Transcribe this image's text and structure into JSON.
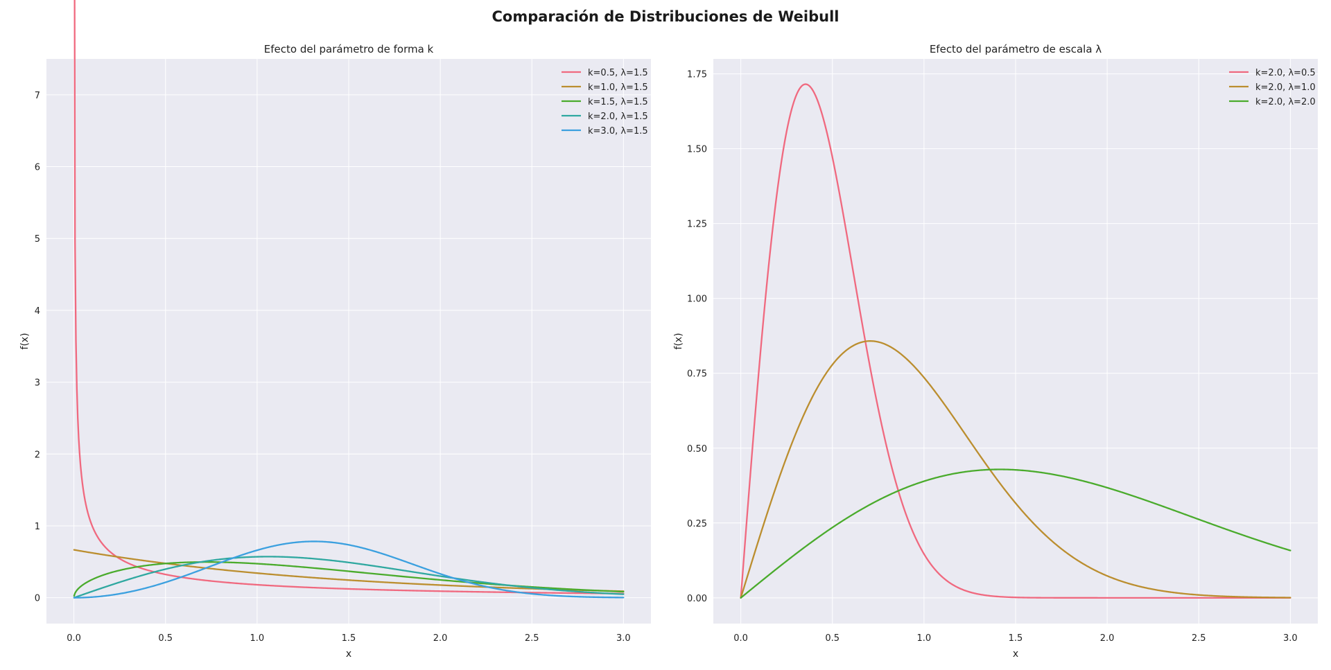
{
  "suptitle": "Comparación de Distribuciones de Weibull",
  "chart_data": [
    {
      "type": "line",
      "title": "Efecto del parámetro de forma k",
      "xlabel": "x",
      "ylabel": "f(x)",
      "xlim": [
        -0.15,
        3.15
      ],
      "ylim": [
        -0.36,
        7.5
      ],
      "xticks": [
        0.0,
        0.5,
        1.0,
        1.5,
        2.0,
        2.5,
        3.0
      ],
      "xtick_labels": [
        "0.0",
        "0.5",
        "1.0",
        "1.5",
        "2.0",
        "2.5",
        "3.0"
      ],
      "yticks": [
        0,
        1,
        2,
        3,
        4,
        5,
        6,
        7
      ],
      "ytick_labels": [
        "0",
        "1",
        "2",
        "3",
        "4",
        "5",
        "6",
        "7"
      ],
      "grid": true,
      "legend_position": "top-right",
      "x_range": [
        0.001,
        3.0
      ],
      "series": [
        {
          "name": "k=0.5, λ=1.5",
          "k": 0.5,
          "lambda": 1.5,
          "color": "#f0697f"
        },
        {
          "name": "k=1.0, λ=1.5",
          "k": 1.0,
          "lambda": 1.5,
          "color": "#bb8e2f"
        },
        {
          "name": "k=1.5, λ=1.5",
          "k": 1.5,
          "lambda": 1.5,
          "color": "#4aab2c"
        },
        {
          "name": "k=2.0, λ=1.5",
          "k": 2.0,
          "lambda": 1.5,
          "color": "#2fa8a0"
        },
        {
          "name": "k=3.0, λ=1.5",
          "k": 3.0,
          "lambda": 1.5,
          "color": "#3ba0df"
        }
      ]
    },
    {
      "type": "line",
      "title": "Efecto del parámetro de escala λ",
      "xlabel": "x",
      "ylabel": "f(x)",
      "xlim": [
        -0.15,
        3.15
      ],
      "ylim": [
        -0.086,
        1.8
      ],
      "xticks": [
        0.0,
        0.5,
        1.0,
        1.5,
        2.0,
        2.5,
        3.0
      ],
      "xtick_labels": [
        "0.0",
        "0.5",
        "1.0",
        "1.5",
        "2.0",
        "2.5",
        "3.0"
      ],
      "yticks": [
        0.0,
        0.25,
        0.5,
        0.75,
        1.0,
        1.25,
        1.5,
        1.75
      ],
      "ytick_labels": [
        "0.00",
        "0.25",
        "0.50",
        "0.75",
        "1.00",
        "1.25",
        "1.50",
        "1.75"
      ],
      "grid": true,
      "legend_position": "top-right",
      "x_range": [
        0.0,
        3.0
      ],
      "series": [
        {
          "name": "k=2.0, λ=0.5",
          "k": 2.0,
          "lambda": 0.5,
          "color": "#f0697f"
        },
        {
          "name": "k=2.0, λ=1.0",
          "k": 2.0,
          "lambda": 1.0,
          "color": "#bb8e2f"
        },
        {
          "name": "k=2.0, λ=2.0",
          "k": 2.0,
          "lambda": 2.0,
          "color": "#4aab2c"
        }
      ]
    }
  ]
}
